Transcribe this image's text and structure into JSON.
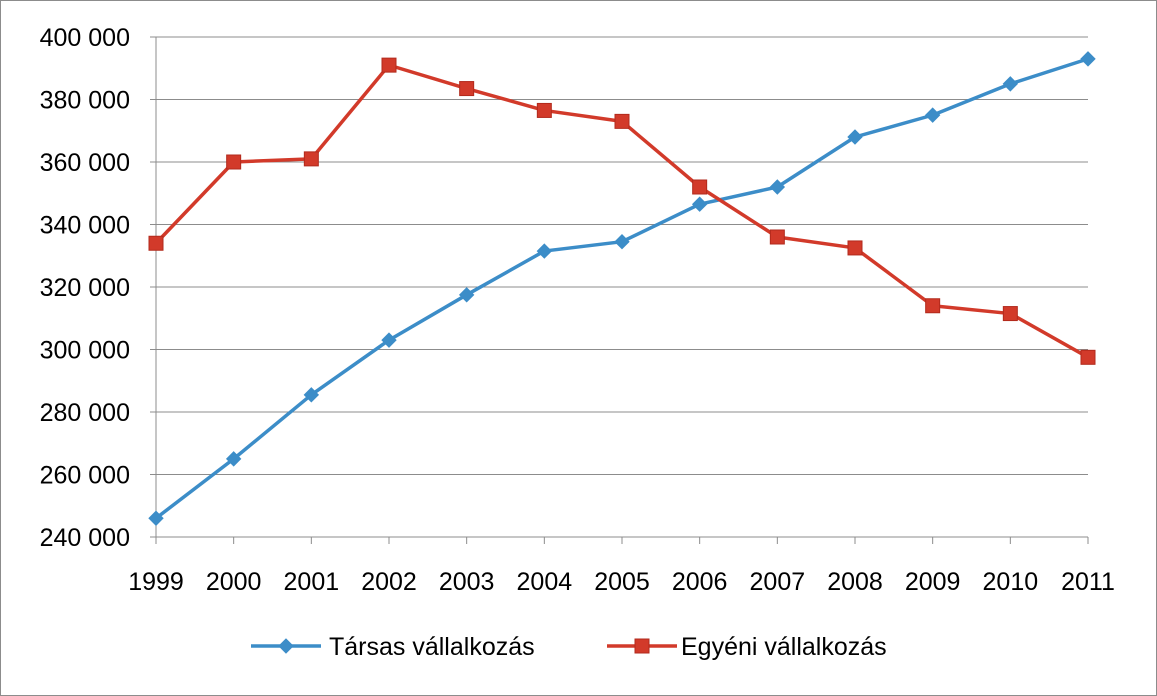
{
  "chart_data": {
    "type": "line",
    "title": "",
    "xlabel": "",
    "ylabel": "",
    "x": [
      "1999",
      "2000",
      "2001",
      "2002",
      "2003",
      "2004",
      "2005",
      "2006",
      "2007",
      "2008",
      "2009",
      "2010",
      "2011"
    ],
    "ylim": [
      240000,
      400000
    ],
    "yticks": [
      240000,
      260000,
      280000,
      300000,
      320000,
      340000,
      360000,
      380000,
      400000
    ],
    "ytick_labels": [
      "240 000",
      "260 000",
      "280 000",
      "300 000",
      "320 000",
      "340 000",
      "360 000",
      "380 000",
      "400 000"
    ],
    "grid": "horizontal",
    "legend_position": "bottom",
    "series": [
      {
        "name": "Társas vállalkozás",
        "color": "#3C8DC8",
        "marker": "diamond",
        "values": [
          246000,
          265000,
          285500,
          303000,
          317500,
          331500,
          334500,
          346500,
          352000,
          368000,
          375000,
          385000,
          393000
        ]
      },
      {
        "name": "Egyéni vállalkozás",
        "color": "#D23A2A",
        "marker": "square",
        "values": [
          334000,
          360000,
          361000,
          391000,
          383500,
          376500,
          373000,
          352000,
          336000,
          332500,
          314000,
          311500,
          297500
        ]
      }
    ]
  }
}
